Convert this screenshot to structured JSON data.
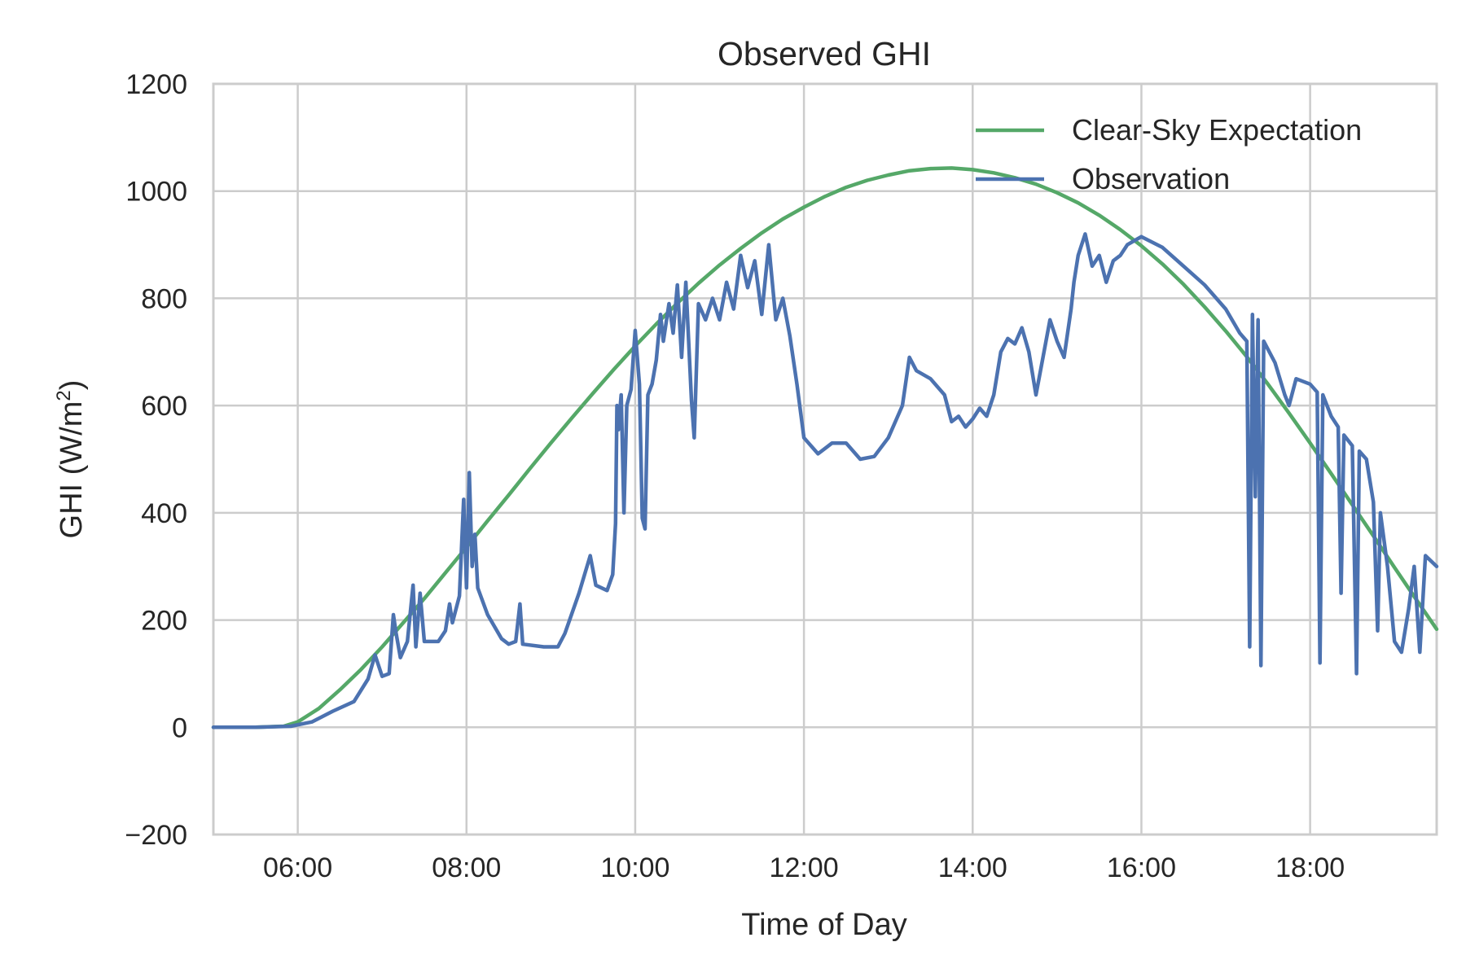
{
  "chart_data": {
    "type": "line",
    "title": "Observed GHI",
    "xlabel": "Time of Day",
    "ylabel": "GHI (W/m",
    "ylabel_superscript": "2",
    "ylabel_suffix": ")",
    "xlim": [
      "05:00",
      "19:30"
    ],
    "ylim": [
      -200,
      1200
    ],
    "x_ticks": [
      "06:00",
      "08:00",
      "10:00",
      "12:00",
      "14:00",
      "16:00",
      "18:00"
    ],
    "y_ticks": [
      -200,
      0,
      200,
      400,
      600,
      800,
      1000,
      1200
    ],
    "y_tick_labels": [
      "−200",
      "0",
      "200",
      "400",
      "600",
      "800",
      "1000",
      "1200"
    ],
    "grid": true,
    "legend_position": "top-right",
    "series": [
      {
        "name": "Clear-Sky Expectation",
        "color": "#55a868",
        "points": [
          [
            "05:00",
            0
          ],
          [
            "05:30",
            0
          ],
          [
            "05:50",
            2
          ],
          [
            "06:00",
            10
          ],
          [
            "06:15",
            35
          ],
          [
            "06:30",
            70
          ],
          [
            "06:45",
            108
          ],
          [
            "07:00",
            150
          ],
          [
            "07:15",
            195
          ],
          [
            "07:30",
            240
          ],
          [
            "07:45",
            288
          ],
          [
            "08:00",
            336
          ],
          [
            "08:15",
            385
          ],
          [
            "08:30",
            433
          ],
          [
            "08:45",
            482
          ],
          [
            "09:00",
            530
          ],
          [
            "09:15",
            577
          ],
          [
            "09:30",
            623
          ],
          [
            "09:45",
            668
          ],
          [
            "10:00",
            711
          ],
          [
            "10:15",
            752
          ],
          [
            "10:30",
            791
          ],
          [
            "10:45",
            828
          ],
          [
            "11:00",
            862
          ],
          [
            "11:15",
            893
          ],
          [
            "11:30",
            922
          ],
          [
            "11:45",
            948
          ],
          [
            "12:00",
            970
          ],
          [
            "12:15",
            990
          ],
          [
            "12:30",
            1007
          ],
          [
            "12:45",
            1020
          ],
          [
            "13:00",
            1030
          ],
          [
            "13:15",
            1038
          ],
          [
            "13:30",
            1042
          ],
          [
            "13:45",
            1043
          ],
          [
            "14:00",
            1040
          ],
          [
            "14:15",
            1034
          ],
          [
            "14:30",
            1025
          ],
          [
            "14:45",
            1013
          ],
          [
            "15:00",
            997
          ],
          [
            "15:15",
            978
          ],
          [
            "15:30",
            955
          ],
          [
            "15:45",
            928
          ],
          [
            "16:00",
            898
          ],
          [
            "16:15",
            864
          ],
          [
            "16:30",
            826
          ],
          [
            "16:45",
            784
          ],
          [
            "17:00",
            739
          ],
          [
            "17:15",
            691
          ],
          [
            "17:30",
            640
          ],
          [
            "17:45",
            586
          ],
          [
            "18:00",
            530
          ],
          [
            "18:15",
            473
          ],
          [
            "18:30",
            415
          ],
          [
            "18:45",
            357
          ],
          [
            "19:00",
            298
          ],
          [
            "19:15",
            240
          ],
          [
            "19:30",
            183
          ]
        ]
      },
      {
        "name": "Observation",
        "color": "#4c72b0",
        "points": [
          [
            "05:00",
            0
          ],
          [
            "05:30",
            0
          ],
          [
            "05:55",
            2
          ],
          [
            "06:10",
            10
          ],
          [
            "06:25",
            30
          ],
          [
            "06:40",
            48
          ],
          [
            "06:50",
            90
          ],
          [
            "06:55",
            135
          ],
          [
            "07:00",
            95
          ],
          [
            "07:05",
            100
          ],
          [
            "07:08",
            210
          ],
          [
            "07:10",
            175
          ],
          [
            "07:13",
            130
          ],
          [
            "07:18",
            160
          ],
          [
            "07:22",
            265
          ],
          [
            "07:24",
            150
          ],
          [
            "07:27",
            250
          ],
          [
            "07:30",
            160
          ],
          [
            "07:40",
            160
          ],
          [
            "07:45",
            180
          ],
          [
            "07:48",
            230
          ],
          [
            "07:50",
            195
          ],
          [
            "07:55",
            245
          ],
          [
            "07:58",
            425
          ],
          [
            "08:00",
            260
          ],
          [
            "08:02",
            475
          ],
          [
            "08:04",
            300
          ],
          [
            "08:06",
            360
          ],
          [
            "08:08",
            260
          ],
          [
            "08:15",
            210
          ],
          [
            "08:25",
            165
          ],
          [
            "08:30",
            155
          ],
          [
            "08:35",
            160
          ],
          [
            "08:38",
            230
          ],
          [
            "08:40",
            155
          ],
          [
            "08:55",
            150
          ],
          [
            "09:05",
            150
          ],
          [
            "09:10",
            175
          ],
          [
            "09:20",
            250
          ],
          [
            "09:28",
            320
          ],
          [
            "09:32",
            265
          ],
          [
            "09:40",
            255
          ],
          [
            "09:44",
            285
          ],
          [
            "09:46",
            380
          ],
          [
            "09:47",
            600
          ],
          [
            "09:48",
            555
          ],
          [
            "09:50",
            620
          ],
          [
            "09:52",
            400
          ],
          [
            "09:54",
            600
          ],
          [
            "09:57",
            630
          ],
          [
            "10:00",
            740
          ],
          [
            "10:03",
            640
          ],
          [
            "10:05",
            390
          ],
          [
            "10:07",
            370
          ],
          [
            "10:09",
            620
          ],
          [
            "10:12",
            640
          ],
          [
            "10:15",
            685
          ],
          [
            "10:18",
            770
          ],
          [
            "10:20",
            720
          ],
          [
            "10:24",
            790
          ],
          [
            "10:27",
            735
          ],
          [
            "10:30",
            825
          ],
          [
            "10:33",
            690
          ],
          [
            "10:36",
            830
          ],
          [
            "10:40",
            610
          ],
          [
            "10:42",
            540
          ],
          [
            "10:45",
            790
          ],
          [
            "10:50",
            760
          ],
          [
            "10:55",
            800
          ],
          [
            "11:00",
            760
          ],
          [
            "11:05",
            830
          ],
          [
            "11:10",
            780
          ],
          [
            "11:15",
            880
          ],
          [
            "11:20",
            820
          ],
          [
            "11:25",
            870
          ],
          [
            "11:30",
            770
          ],
          [
            "11:35",
            900
          ],
          [
            "11:40",
            760
          ],
          [
            "11:45",
            800
          ],
          [
            "11:50",
            730
          ],
          [
            "11:55",
            640
          ],
          [
            "12:00",
            540
          ],
          [
            "12:10",
            510
          ],
          [
            "12:20",
            530
          ],
          [
            "12:30",
            530
          ],
          [
            "12:40",
            500
          ],
          [
            "12:50",
            505
          ],
          [
            "13:00",
            540
          ],
          [
            "13:10",
            600
          ],
          [
            "13:15",
            690
          ],
          [
            "13:20",
            665
          ],
          [
            "13:30",
            650
          ],
          [
            "13:40",
            620
          ],
          [
            "13:45",
            570
          ],
          [
            "13:50",
            580
          ],
          [
            "13:55",
            560
          ],
          [
            "14:00",
            575
          ],
          [
            "14:05",
            595
          ],
          [
            "14:10",
            580
          ],
          [
            "14:15",
            620
          ],
          [
            "14:20",
            700
          ],
          [
            "14:25",
            725
          ],
          [
            "14:30",
            715
          ],
          [
            "14:35",
            745
          ],
          [
            "14:40",
            700
          ],
          [
            "14:45",
            620
          ],
          [
            "14:50",
            690
          ],
          [
            "14:55",
            760
          ],
          [
            "15:00",
            720
          ],
          [
            "15:05",
            690
          ],
          [
            "15:10",
            780
          ],
          [
            "15:12",
            830
          ],
          [
            "15:15",
            880
          ],
          [
            "15:20",
            920
          ],
          [
            "15:25",
            860
          ],
          [
            "15:30",
            880
          ],
          [
            "15:35",
            830
          ],
          [
            "15:40",
            870
          ],
          [
            "15:45",
            880
          ],
          [
            "15:50",
            900
          ],
          [
            "16:00",
            915
          ],
          [
            "16:15",
            895
          ],
          [
            "16:30",
            860
          ],
          [
            "16:45",
            825
          ],
          [
            "17:00",
            780
          ],
          [
            "17:10",
            735
          ],
          [
            "17:15",
            720
          ],
          [
            "17:17",
            150
          ],
          [
            "17:19",
            770
          ],
          [
            "17:21",
            430
          ],
          [
            "17:23",
            760
          ],
          [
            "17:25",
            115
          ],
          [
            "17:27",
            720
          ],
          [
            "17:35",
            680
          ],
          [
            "17:42",
            620
          ],
          [
            "17:45",
            600
          ],
          [
            "17:50",
            650
          ],
          [
            "18:00",
            640
          ],
          [
            "18:05",
            625
          ],
          [
            "18:07",
            120
          ],
          [
            "18:09",
            620
          ],
          [
            "18:15",
            580
          ],
          [
            "18:20",
            560
          ],
          [
            "18:22",
            250
          ],
          [
            "18:24",
            545
          ],
          [
            "18:30",
            525
          ],
          [
            "18:33",
            100
          ],
          [
            "18:35",
            515
          ],
          [
            "18:40",
            500
          ],
          [
            "18:45",
            420
          ],
          [
            "18:48",
            180
          ],
          [
            "18:50",
            400
          ],
          [
            "18:55",
            300
          ],
          [
            "19:00",
            160
          ],
          [
            "19:05",
            140
          ],
          [
            "19:10",
            220
          ],
          [
            "19:14",
            300
          ],
          [
            "19:18",
            140
          ],
          [
            "19:22",
            320
          ],
          [
            "19:30",
            300
          ]
        ]
      }
    ]
  }
}
